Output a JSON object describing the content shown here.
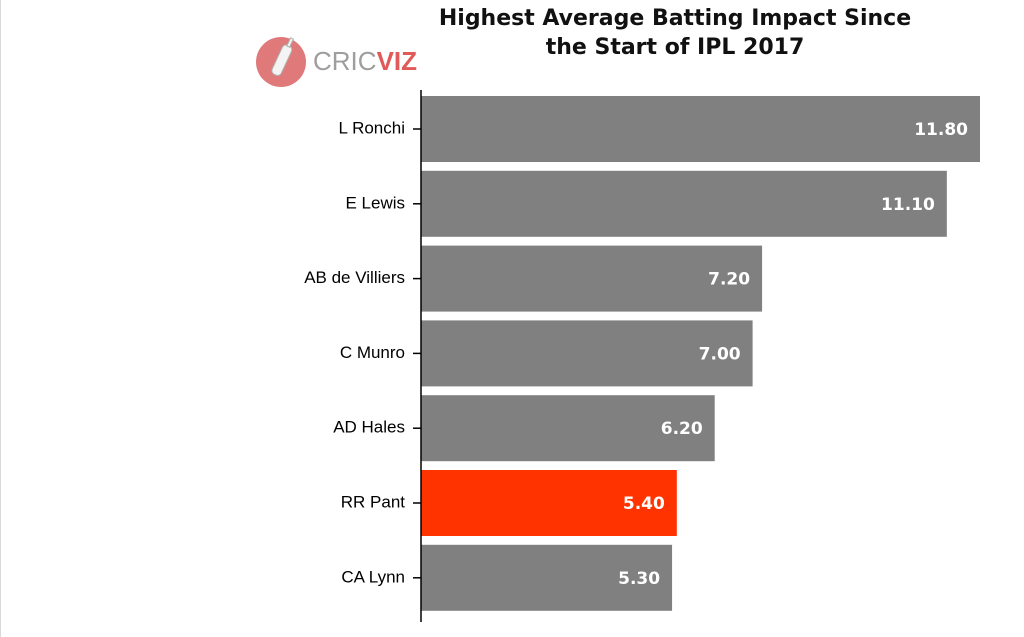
{
  "logo": {
    "part1": "CRIC",
    "part2": "VIZ"
  },
  "chart_data": {
    "type": "bar",
    "orientation": "horizontal",
    "title_lines": [
      "Highest Average Batting Impact Since",
      "the Start of IPL 2017"
    ],
    "categories": [
      "L Ronchi",
      "E Lewis",
      "AB de Villiers",
      "C Munro",
      "AD Hales",
      "RR Pant",
      "CA Lynn"
    ],
    "values": [
      11.8,
      11.1,
      7.2,
      7.0,
      6.2,
      5.4,
      5.3
    ],
    "labels": [
      "11.80",
      "11.10",
      "7.20",
      "7.00",
      "6.20",
      "5.40",
      "5.30"
    ],
    "colors": [
      "#808080",
      "#808080",
      "#808080",
      "#808080",
      "#808080",
      "#ff3300",
      "#808080"
    ],
    "xlim": [
      0,
      11.8
    ],
    "grid": false
  }
}
